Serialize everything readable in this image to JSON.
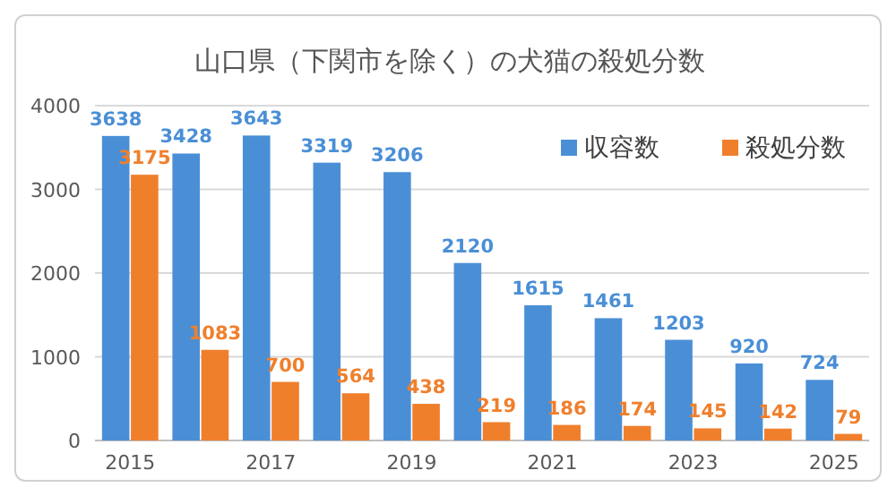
{
  "chart_data": {
    "type": "bar",
    "title": "山口県（下関市を除く）の犬猫の殺処分数",
    "categories": [
      "2015",
      null,
      "2017",
      null,
      "2019",
      null,
      "2021",
      null,
      "2023",
      null,
      "2025"
    ],
    "series": [
      {
        "name": "収容数",
        "color": "#4a8fd6",
        "values": [
          3638,
          3428,
          3643,
          3319,
          3206,
          2120,
          1615,
          1461,
          1203,
          920,
          724
        ]
      },
      {
        "name": "殺処分数",
        "color": "#f07f2c",
        "values": [
          3175,
          1083,
          700,
          564,
          438,
          219,
          186,
          174,
          145,
          142,
          79
        ]
      }
    ],
    "ylim": [
      0,
      4000
    ],
    "yticks": [
      0,
      1000,
      2000,
      3000,
      4000
    ],
    "grid": "y",
    "legend": "top right",
    "data_labels": true
  }
}
